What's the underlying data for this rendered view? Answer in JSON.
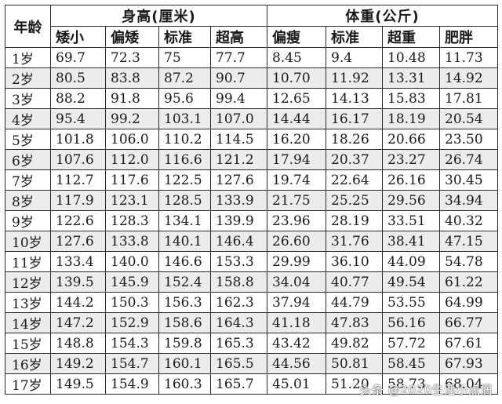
{
  "table": {
    "age_header": "年龄",
    "height_group": "身高(厘米)",
    "weight_group": "体重(公斤)",
    "height_cols": [
      "矮小",
      "偏矮",
      "标准",
      "超高"
    ],
    "weight_cols": [
      "偏瘦",
      "标准",
      "超重",
      "肥胖"
    ],
    "rows": [
      [
        "1岁",
        "69.7",
        "72.3",
        "75",
        "77.7",
        "8.45",
        "9.4",
        "10.48",
        "11.73"
      ],
      [
        "2岁",
        "80.5",
        "83.8",
        "87.2",
        "90.7",
        "10.70",
        "11.92",
        "13.31",
        "14.92"
      ],
      [
        "3岁",
        "88.2",
        "91.8",
        "95.6",
        "99.4",
        "12.65",
        "14.13",
        "15.83",
        "17.81"
      ],
      [
        "4岁",
        "95.4",
        "99.2",
        "103.1",
        "107.0",
        "14.44",
        "16.17",
        "18.19",
        "20.54"
      ],
      [
        "5岁",
        "101.8",
        "106.0",
        "110.2",
        "114.5",
        "16.20",
        "18.26",
        "20.66",
        "23.50"
      ],
      [
        "6岁",
        "107.6",
        "112.0",
        "116.6",
        "121.2",
        "17.94",
        "20.37",
        "23.27",
        "26.74"
      ],
      [
        "7岁",
        "112.7",
        "117.6",
        "122.5",
        "127.6",
        "19.74",
        "22.64",
        "26.16",
        "30.45"
      ],
      [
        "8岁",
        "117.9",
        "123.1",
        "128.5",
        "133.9",
        "21.75",
        "25.25",
        "29.56",
        "34.94"
      ],
      [
        "9岁",
        "122.6",
        "128.3",
        "134.1",
        "139.9",
        "23.96",
        "28.19",
        "33.51",
        "40.32"
      ],
      [
        "10岁",
        "127.6",
        "133.8",
        "140.1",
        "146.4",
        "26.60",
        "31.76",
        "38.41",
        "47.15"
      ],
      [
        "11岁",
        "133.4",
        "140.0",
        "146.6",
        "153.3",
        "29.99",
        "36.10",
        "44.09",
        "54.78"
      ],
      [
        "12岁",
        "139.5",
        "145.9",
        "152.4",
        "158.8",
        "34.04",
        "40.77",
        "49.54",
        "61.22"
      ],
      [
        "13岁",
        "144.2",
        "150.3",
        "156.3",
        "162.3",
        "37.94",
        "44.79",
        "53.55",
        "64.99"
      ],
      [
        "14岁",
        "147.2",
        "152.9",
        "158.6",
        "164.3",
        "41.18",
        "47.83",
        "56.16",
        "66.77"
      ],
      [
        "15岁",
        "148.8",
        "154.3",
        "159.8",
        "165.3",
        "43.42",
        "49.82",
        "57.72",
        "67.61"
      ],
      [
        "16岁",
        "149.2",
        "154.7",
        "160.1",
        "165.5",
        "44.56",
        "50.81",
        "58.45",
        "67.93"
      ],
      [
        "17岁",
        "149.5",
        "154.9",
        "160.3",
        "165.7",
        "45.01",
        "51.20",
        "58.73",
        "68.04"
      ]
    ]
  },
  "watermark": "头条 @2020生活小点滴"
}
